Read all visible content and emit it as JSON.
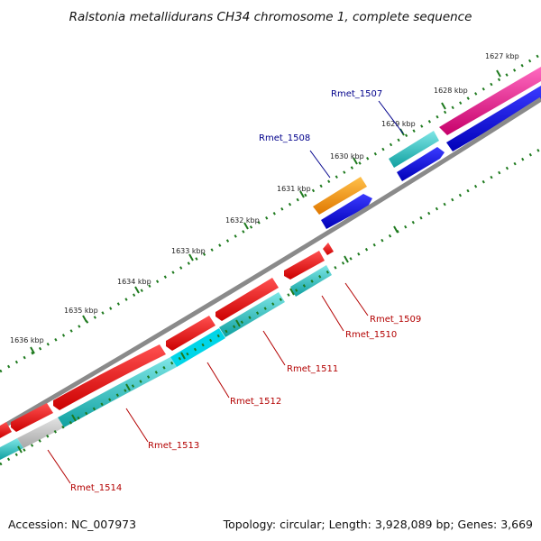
{
  "title": "Ralstonia metallidurans CH34 chromosome 1, complete sequence",
  "footer": {
    "accession": "Accession: NC_007973",
    "summary": "Topology: circular; Length: 3,928,089 bp; Genes: 3,669"
  },
  "kbp_ticks": [
    "1627 kbp",
    "1628 kbp",
    "1629 kbp",
    "1630 kbp",
    "1631 kbp",
    "1632 kbp",
    "1633 kbp",
    "1634 kbp",
    "1635 kbp",
    "1636 kbp"
  ],
  "gene_labels": {
    "top": [
      "Rmet_1507",
      "Rmet_1508"
    ],
    "bottom": [
      "Rmet_1509",
      "Rmet_1510",
      "Rmet_1511",
      "Rmet_1512",
      "Rmet_1513",
      "Rmet_1514"
    ]
  },
  "colors": {
    "backbone": "#8a8a8a",
    "tick_major": "#1e7a1e",
    "tick_minor": "#1e7a1e",
    "cds_forward": "#e8007a",
    "cds_reverse": "#ff0000",
    "cds_blue": "#0000ee",
    "cds_cyan": "#19c3c3",
    "cds_orange": "#ff8c00",
    "cds_gray": "#bdbdbd",
    "label_top": "#00008b",
    "label_bottom": "#b30000"
  }
}
